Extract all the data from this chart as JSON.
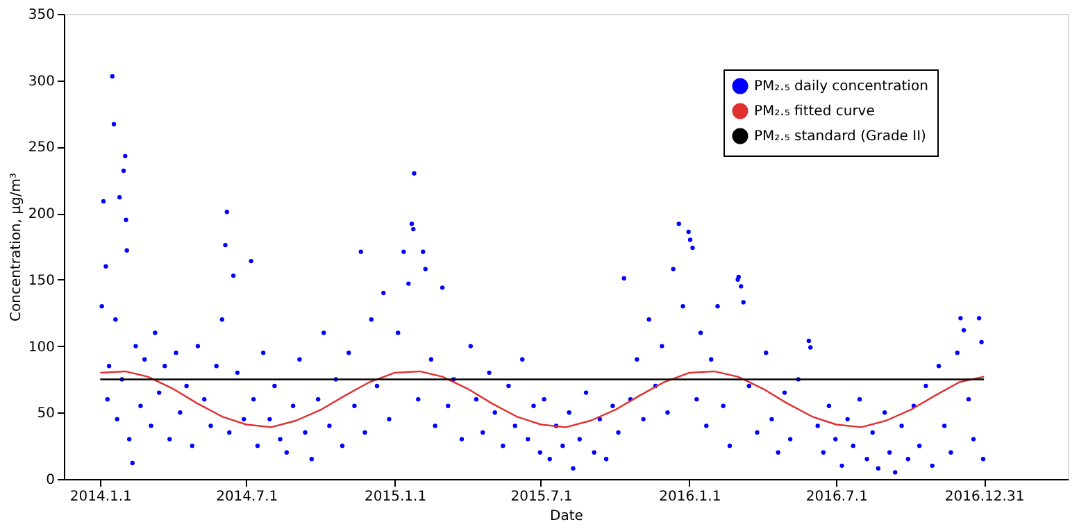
{
  "chart_data": {
    "type": "scatter",
    "xlabel": "Date",
    "ylabel": "Concentration, μg/m³",
    "xlim": [
      "2013-11-17",
      "2017-04-14"
    ],
    "xticks": [
      {
        "value": "2014-01-01",
        "label": "2014.1.1"
      },
      {
        "value": "2014-07-01",
        "label": "2014.7.1"
      },
      {
        "value": "2015-01-01",
        "label": "2015.1.1"
      },
      {
        "value": "2015-07-01",
        "label": "2015.7.1"
      },
      {
        "value": "2016-01-01",
        "label": "2016.1.1"
      },
      {
        "value": "2016-07-01",
        "label": "2016.7.1"
      },
      {
        "value": "2016-12-31",
        "label": "2016.12.31"
      }
    ],
    "ylim": [
      0,
      350
    ],
    "yticks": [
      0,
      50,
      100,
      150,
      200,
      250,
      300,
      350
    ],
    "grid": false,
    "legend": "top right",
    "series": [
      {
        "name": "PM₂.₅ daily concentration",
        "color": "#0000ff",
        "marker": "circle",
        "x": [
          "2014-01-03",
          "2014-01-05",
          "2014-01-08",
          "2014-01-10",
          "2014-01-12",
          "2014-01-16",
          "2014-01-18",
          "2014-01-20",
          "2014-01-22",
          "2014-01-25",
          "2014-01-28",
          "2014-01-30",
          "2014-02-01",
          "2014-02-02",
          "2014-02-03",
          "2014-02-06",
          "2014-02-10",
          "2014-02-14",
          "2014-02-20",
          "2014-02-25",
          "2014-03-05",
          "2014-03-10",
          "2014-03-15",
          "2014-03-22",
          "2014-03-28",
          "2014-04-05",
          "2014-04-10",
          "2014-04-18",
          "2014-04-25",
          "2014-05-02",
          "2014-05-10",
          "2014-05-18",
          "2014-05-25",
          "2014-06-01",
          "2014-06-05",
          "2014-06-07",
          "2014-06-10",
          "2014-06-15",
          "2014-06-20",
          "2014-06-28",
          "2014-07-07",
          "2014-07-10",
          "2014-07-15",
          "2014-07-22",
          "2014-07-30",
          "2014-08-05",
          "2014-08-12",
          "2014-08-20",
          "2014-08-28",
          "2014-09-05",
          "2014-09-12",
          "2014-09-20",
          "2014-09-28",
          "2014-10-05",
          "2014-10-12",
          "2014-10-20",
          "2014-10-28",
          "2014-11-05",
          "2014-11-12",
          "2014-11-20",
          "2014-11-25",
          "2014-12-03",
          "2014-12-10",
          "2014-12-18",
          "2014-12-25",
          "2015-01-05",
          "2015-01-12",
          "2015-01-18",
          "2015-01-22",
          "2015-01-24",
          "2015-01-25",
          "2015-01-30",
          "2015-02-05",
          "2015-02-08",
          "2015-02-15",
          "2015-02-20",
          "2015-03-01",
          "2015-03-08",
          "2015-03-15",
          "2015-03-25",
          "2015-04-05",
          "2015-04-12",
          "2015-04-20",
          "2015-04-28",
          "2015-05-05",
          "2015-05-15",
          "2015-05-22",
          "2015-05-30",
          "2015-06-08",
          "2015-06-15",
          "2015-06-22",
          "2015-06-30",
          "2015-07-05",
          "2015-07-12",
          "2015-07-20",
          "2015-07-28",
          "2015-08-05",
          "2015-08-10",
          "2015-08-18",
          "2015-08-26",
          "2015-09-05",
          "2015-09-12",
          "2015-09-20",
          "2015-09-28",
          "2015-10-05",
          "2015-10-12",
          "2015-10-20",
          "2015-10-28",
          "2015-11-05",
          "2015-11-12",
          "2015-11-20",
          "2015-11-28",
          "2015-12-05",
          "2015-12-12",
          "2015-12-19",
          "2015-12-24",
          "2015-12-31",
          "2016-01-02",
          "2016-01-05",
          "2016-01-10",
          "2016-01-15",
          "2016-01-22",
          "2016-01-28",
          "2016-02-05",
          "2016-02-12",
          "2016-02-20",
          "2016-03-01",
          "2016-03-02",
          "2016-03-05",
          "2016-03-08",
          "2016-03-15",
          "2016-03-25",
          "2016-04-05",
          "2016-04-12",
          "2016-04-20",
          "2016-04-28",
          "2016-05-05",
          "2016-05-15",
          "2016-05-28",
          "2016-05-30",
          "2016-06-08",
          "2016-06-15",
          "2016-06-22",
          "2016-06-30",
          "2016-07-08",
          "2016-07-15",
          "2016-07-22",
          "2016-07-30",
          "2016-08-08",
          "2016-08-15",
          "2016-08-22",
          "2016-08-30",
          "2016-09-05",
          "2016-09-12",
          "2016-09-20",
          "2016-09-28",
          "2016-10-05",
          "2016-10-12",
          "2016-10-20",
          "2016-10-28",
          "2016-11-05",
          "2016-11-12",
          "2016-11-20",
          "2016-11-28",
          "2016-12-02",
          "2016-12-06",
          "2016-12-12",
          "2016-12-18",
          "2016-12-25",
          "2016-12-28",
          "2016-12-30"
        ],
        "values": [
          130,
          209,
          160,
          60,
          85,
          303,
          267,
          120,
          45,
          212,
          75,
          232,
          243,
          195,
          172,
          30,
          12,
          100,
          55,
          90,
          40,
          110,
          65,
          85,
          30,
          95,
          50,
          70,
          25,
          100,
          60,
          40,
          85,
          120,
          176,
          201,
          35,
          153,
          80,
          45,
          164,
          60,
          25,
          95,
          45,
          70,
          30,
          20,
          55,
          90,
          35,
          15,
          60,
          110,
          40,
          75,
          25,
          95,
          55,
          171,
          35,
          120,
          70,
          140,
          45,
          110,
          171,
          147,
          192,
          188,
          230,
          60,
          171,
          158,
          90,
          40,
          144,
          55,
          75,
          30,
          100,
          60,
          35,
          80,
          50,
          25,
          70,
          40,
          90,
          30,
          55,
          20,
          60,
          15,
          40,
          25,
          50,
          8,
          30,
          65,
          20,
          45,
          15,
          55,
          35,
          151,
          60,
          90,
          45,
          120,
          70,
          100,
          50,
          158,
          192,
          130,
          186,
          180,
          174,
          60,
          110,
          40,
          90,
          130,
          55,
          25,
          150,
          152,
          145,
          133,
          70,
          35,
          95,
          45,
          20,
          65,
          30,
          75,
          104,
          99,
          40,
          20,
          55,
          30,
          10,
          45,
          25,
          60,
          15,
          35,
          8,
          50,
          20,
          5,
          40,
          15,
          55,
          25,
          70,
          10,
          85,
          40,
          20,
          95,
          121,
          112,
          60,
          30,
          121,
          103,
          15
        ]
      },
      {
        "name": "PM₂.₅ fitted curve",
        "type": "line",
        "color": "#e03030",
        "x": [
          "2014-01-01",
          "2014-02-01",
          "2014-03-01",
          "2014-04-01",
          "2014-05-01",
          "2014-06-01",
          "2014-07-01",
          "2014-08-01",
          "2014-09-01",
          "2014-10-01",
          "2014-11-01",
          "2014-12-01",
          "2015-01-01",
          "2015-02-01",
          "2015-03-01",
          "2015-04-01",
          "2015-05-01",
          "2015-06-01",
          "2015-07-01",
          "2015-08-01",
          "2015-09-01",
          "2015-10-01",
          "2015-11-01",
          "2015-12-01",
          "2016-01-01",
          "2016-02-01",
          "2016-03-01",
          "2016-04-01",
          "2016-05-01",
          "2016-06-01",
          "2016-07-01",
          "2016-08-01",
          "2016-09-01",
          "2016-10-01",
          "2016-11-01",
          "2016-12-01",
          "2016-12-31"
        ],
        "values": [
          80,
          81,
          77,
          68,
          57,
          47,
          41,
          39,
          44,
          52,
          63,
          73,
          80,
          81,
          77,
          68,
          57,
          47,
          41,
          39,
          44,
          52,
          63,
          73,
          80,
          81,
          77,
          68,
          57,
          47,
          41,
          39,
          44,
          52,
          63,
          73,
          77
        ]
      },
      {
        "name": "PM₂.₅ standard (Grade II)",
        "type": "line",
        "color": "#000000",
        "x": [
          "2014-01-01",
          "2016-12-31"
        ],
        "values": [
          75,
          75
        ]
      }
    ]
  }
}
